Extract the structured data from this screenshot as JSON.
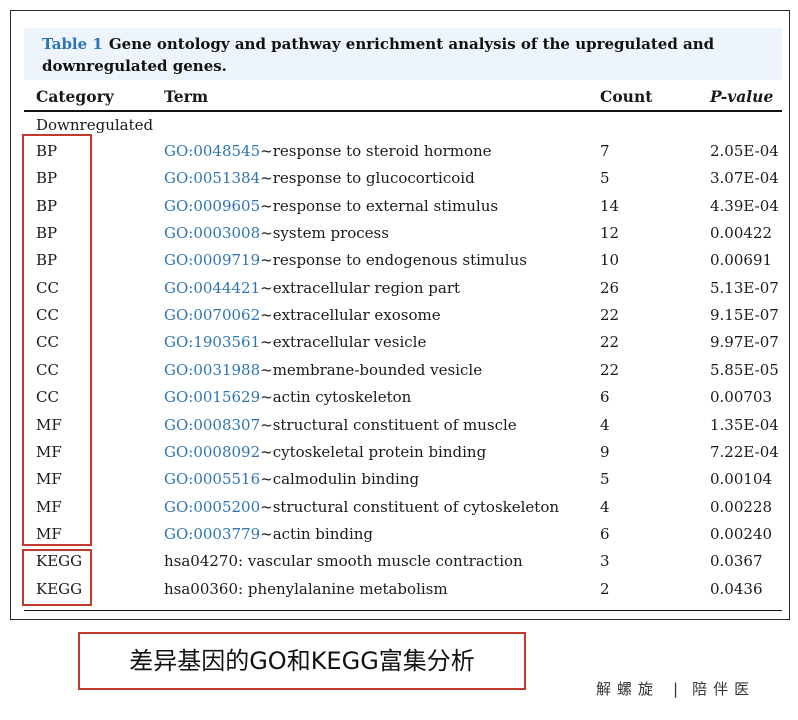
{
  "caption": {
    "label": "Table 1",
    "text": "Gene ontology and pathway enrichment analysis of the upregulated and downregulated genes."
  },
  "columns": {
    "category": "Category",
    "term": "Term",
    "count": "Count",
    "pvalue": "P-value"
  },
  "group_label": "Downregulated",
  "rows": [
    {
      "category": "BP",
      "go_id": "GO:0048545",
      "term": "~response to steroid hormone",
      "count": "7",
      "pvalue": "2.05E-04"
    },
    {
      "category": "BP",
      "go_id": "GO:0051384",
      "term": "~response to glucocorticoid",
      "count": "5",
      "pvalue": "3.07E-04"
    },
    {
      "category": "BP",
      "go_id": "GO:0009605",
      "term": "~response to external stimulus",
      "count": "14",
      "pvalue": "4.39E-04"
    },
    {
      "category": "BP",
      "go_id": "GO:0003008",
      "term": "~system process",
      "count": "12",
      "pvalue": "0.00422"
    },
    {
      "category": "BP",
      "go_id": "GO:0009719",
      "term": "~response to endogenous stimulus",
      "count": "10",
      "pvalue": "0.00691"
    },
    {
      "category": "CC",
      "go_id": "GO:0044421",
      "term": "~extracellular region part",
      "count": "26",
      "pvalue": "5.13E-07"
    },
    {
      "category": "CC",
      "go_id": "GO:0070062",
      "term": "~extracellular exosome",
      "count": "22",
      "pvalue": "9.15E-07"
    },
    {
      "category": "CC",
      "go_id": "GO:1903561",
      "term": "~extracellular vesicle",
      "count": "22",
      "pvalue": "9.97E-07"
    },
    {
      "category": "CC",
      "go_id": "GO:0031988",
      "term": "~membrane-bounded vesicle",
      "count": "22",
      "pvalue": "5.85E-05"
    },
    {
      "category": "CC",
      "go_id": "GO:0015629",
      "term": "~actin cytoskeleton",
      "count": "6",
      "pvalue": "0.00703"
    },
    {
      "category": "MF",
      "go_id": "GO:0008307",
      "term": "~structural constituent of muscle",
      "count": "4",
      "pvalue": "1.35E-04"
    },
    {
      "category": "MF",
      "go_id": "GO:0008092",
      "term": "~cytoskeletal protein binding",
      "count": "9",
      "pvalue": "7.22E-04"
    },
    {
      "category": "MF",
      "go_id": "GO:0005516",
      "term": "~calmodulin binding",
      "count": "5",
      "pvalue": "0.00104"
    },
    {
      "category": "MF",
      "go_id": "GO:0005200",
      "term": "~structural constituent of cytoskeleton",
      "count": "4",
      "pvalue": "0.00228"
    },
    {
      "category": "MF",
      "go_id": "GO:0003779",
      "term": "~actin binding",
      "count": "6",
      "pvalue": "0.00240"
    },
    {
      "category": "KEGG",
      "go_id": "",
      "term": "hsa04270: vascular smooth muscle contraction",
      "count": "3",
      "pvalue": "0.0367"
    },
    {
      "category": "KEGG",
      "go_id": "",
      "term": "hsa00360: phenylalanine metabolism",
      "count": "2",
      "pvalue": "0.0436"
    }
  ],
  "annotation": "差异基因的GO和KEGG富集分析",
  "footer": {
    "left": "解螺旋",
    "separator": "|",
    "right": "陪伴医"
  },
  "colors": {
    "go_link": "#2e74b5",
    "highlight_box": "#c0392b",
    "caption_bg": "#eef4fb"
  }
}
